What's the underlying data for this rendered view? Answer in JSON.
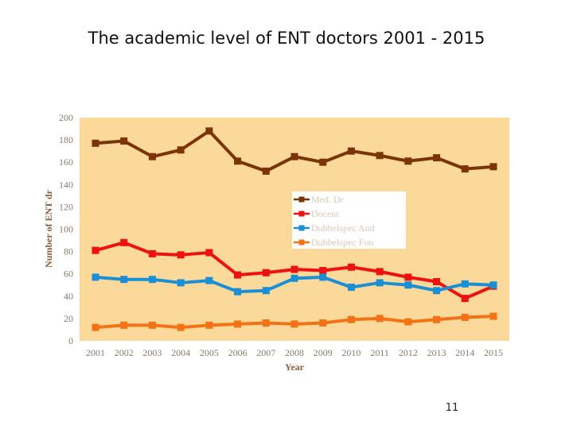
{
  "slide": {
    "title": "The academic level of ENT doctors 2001 - 2015",
    "page_number": "11"
  },
  "chart_data": {
    "type": "line",
    "title": "The academic level of ENT doctors 2001 - 2015",
    "xlabel": "Year",
    "ylabel": "Number of ENT dr",
    "categories": [
      "2001",
      "2002",
      "2003",
      "2004",
      "2005",
      "2006",
      "2007",
      "2008",
      "2009",
      "2010",
      "2011",
      "2012",
      "2013",
      "2014",
      "2015"
    ],
    "ylim": [
      0,
      200
    ],
    "yticks": [
      0,
      20,
      40,
      60,
      80,
      100,
      120,
      140,
      160,
      180,
      200
    ],
    "grid": false,
    "legend_position": "center-right",
    "plot_background": "#fbd99a",
    "series": [
      {
        "name": "Med. Dr",
        "color": "#7b3308",
        "values": [
          177,
          179,
          165,
          171,
          188,
          161,
          152,
          165,
          160,
          170,
          166,
          161,
          164,
          154,
          156
        ]
      },
      {
        "name": "Docent",
        "color": "#ee1111",
        "values": [
          81,
          88,
          78,
          77,
          79,
          59,
          61,
          64,
          63,
          66,
          62,
          57,
          53,
          38,
          49
        ]
      },
      {
        "name": "Dubbelspec Aud",
        "color": "#1a8fd6",
        "values": [
          57,
          55,
          55,
          52,
          54,
          44,
          45,
          56,
          57,
          48,
          52,
          50,
          45,
          51,
          50
        ]
      },
      {
        "name": "Dubbelspec Fon",
        "color": "#f47216",
        "values": [
          12,
          14,
          14,
          12,
          14,
          15,
          16,
          15,
          16,
          19,
          20,
          17,
          19,
          21,
          22
        ]
      }
    ]
  }
}
